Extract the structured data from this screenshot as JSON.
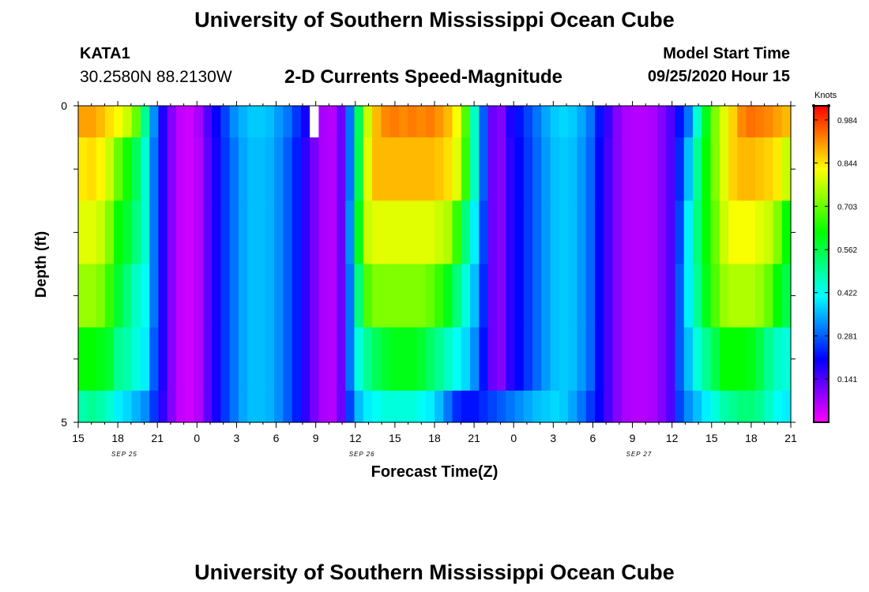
{
  "header": {
    "title_top": "University of Southern Mississippi Ocean Cube",
    "title_bottom": "University of Southern Mississippi Ocean Cube",
    "station_id": "KATA1",
    "station_coords": "30.2580N 88.2130W",
    "subtitle": "2-D Currents Speed-Magnitude",
    "model_start_label": "Model Start Time",
    "model_start_value": "09/25/2020 Hour 15"
  },
  "chart_data": {
    "type": "heatmap",
    "title": "2-D Currents Speed-Magnitude",
    "xlabel": "Forecast Time(Z)",
    "ylabel": "Depth (ft)",
    "x_ticks": [
      "15",
      "18",
      "21",
      "0",
      "3",
      "6",
      "9",
      "12",
      "15",
      "18",
      "21",
      "0",
      "3",
      "6",
      "9",
      "12",
      "15",
      "18",
      "21"
    ],
    "date_labels": [
      {
        "label": "SEP 25",
        "tick_index": 1
      },
      {
        "label": "SEP 26",
        "tick_index": 7
      },
      {
        "label": "SEP 27",
        "tick_index": 14
      }
    ],
    "y_ticks": [
      "0",
      "5"
    ],
    "ylim": [
      0,
      5
    ],
    "depth_rows": [
      0.25,
      1.0,
      2.0,
      3.0,
      4.0,
      4.75
    ],
    "time_step_hours": 1,
    "colorbar": {
      "label": "Knots",
      "min": 0.0,
      "max": 1.03,
      "ticks": [
        0.984,
        0.844,
        0.703,
        0.562,
        0.422,
        0.281,
        0.141
      ],
      "colors": [
        "#ff00ff",
        "#8000ff",
        "#0000ff",
        "#0080ff",
        "#00ffff",
        "#00ff80",
        "#00ff00",
        "#80ff00",
        "#ffff00",
        "#ff8000",
        "#ff0000"
      ]
    },
    "missing": [
      {
        "hour_index": 26,
        "row": 0
      }
    ],
    "speed_knots": [
      [
        0.9,
        0.9,
        0.88,
        0.85,
        0.82,
        0.78,
        0.7,
        0.5,
        0.32,
        0.18,
        0.1,
        0.05,
        0.04,
        0.07,
        0.14,
        0.2,
        0.26,
        0.32,
        0.35,
        0.37,
        0.37,
        0.36,
        0.33,
        0.3,
        0.25,
        0.19,
        0.12,
        0.07,
        0.06,
        0.12,
        0.3,
        0.55,
        0.78,
        0.88,
        0.92,
        0.93,
        0.92,
        0.93,
        0.92,
        0.93,
        0.91,
        0.88,
        0.82,
        0.68,
        0.46,
        0.28,
        0.12,
        0.1,
        0.18,
        0.22,
        0.26,
        0.3,
        0.34,
        0.37,
        0.38,
        0.37,
        0.34,
        0.3,
        0.22,
        0.16,
        0.1,
        0.07,
        0.06,
        0.06,
        0.07,
        0.1,
        0.14,
        0.22,
        0.3,
        0.45,
        0.6,
        0.72,
        0.8,
        0.86,
        0.92,
        0.94,
        0.93,
        0.92,
        0.9,
        0.88
      ],
      [
        0.84,
        0.85,
        0.83,
        0.78,
        0.7,
        0.63,
        0.55,
        0.45,
        0.3,
        0.18,
        0.1,
        0.05,
        0.04,
        0.06,
        0.13,
        0.19,
        0.25,
        0.3,
        0.34,
        0.36,
        0.36,
        0.35,
        0.32,
        0.28,
        0.23,
        0.17,
        0.11,
        0.07,
        0.06,
        0.12,
        0.3,
        0.56,
        0.8,
        0.88,
        0.88,
        0.88,
        0.88,
        0.88,
        0.88,
        0.88,
        0.87,
        0.85,
        0.8,
        0.66,
        0.46,
        0.28,
        0.12,
        0.1,
        0.17,
        0.21,
        0.25,
        0.29,
        0.33,
        0.36,
        0.37,
        0.36,
        0.33,
        0.29,
        0.21,
        0.15,
        0.1,
        0.07,
        0.06,
        0.06,
        0.07,
        0.1,
        0.14,
        0.24,
        0.36,
        0.5,
        0.62,
        0.72,
        0.8,
        0.86,
        0.88,
        0.88,
        0.87,
        0.86,
        0.84,
        0.78
      ],
      [
        0.8,
        0.8,
        0.78,
        0.72,
        0.62,
        0.58,
        0.52,
        0.45,
        0.3,
        0.18,
        0.1,
        0.05,
        0.04,
        0.06,
        0.13,
        0.19,
        0.25,
        0.3,
        0.34,
        0.36,
        0.36,
        0.35,
        0.32,
        0.28,
        0.23,
        0.17,
        0.11,
        0.07,
        0.06,
        0.12,
        0.32,
        0.6,
        0.78,
        0.8,
        0.8,
        0.8,
        0.8,
        0.8,
        0.8,
        0.8,
        0.78,
        0.76,
        0.66,
        0.52,
        0.4,
        0.26,
        0.12,
        0.1,
        0.17,
        0.21,
        0.25,
        0.29,
        0.33,
        0.36,
        0.37,
        0.36,
        0.33,
        0.29,
        0.21,
        0.15,
        0.1,
        0.07,
        0.06,
        0.06,
        0.07,
        0.1,
        0.14,
        0.26,
        0.4,
        0.52,
        0.62,
        0.7,
        0.78,
        0.82,
        0.82,
        0.82,
        0.8,
        0.78,
        0.72,
        0.62
      ],
      [
        0.74,
        0.74,
        0.72,
        0.66,
        0.58,
        0.52,
        0.46,
        0.42,
        0.3,
        0.18,
        0.1,
        0.05,
        0.04,
        0.06,
        0.13,
        0.19,
        0.25,
        0.3,
        0.34,
        0.36,
        0.36,
        0.35,
        0.32,
        0.28,
        0.23,
        0.17,
        0.11,
        0.07,
        0.06,
        0.12,
        0.3,
        0.52,
        0.68,
        0.72,
        0.72,
        0.72,
        0.72,
        0.72,
        0.72,
        0.7,
        0.66,
        0.6,
        0.52,
        0.44,
        0.36,
        0.24,
        0.12,
        0.1,
        0.17,
        0.21,
        0.25,
        0.29,
        0.33,
        0.36,
        0.37,
        0.36,
        0.33,
        0.29,
        0.21,
        0.15,
        0.1,
        0.07,
        0.06,
        0.06,
        0.07,
        0.1,
        0.14,
        0.28,
        0.4,
        0.5,
        0.6,
        0.68,
        0.74,
        0.76,
        0.76,
        0.76,
        0.74,
        0.7,
        0.62,
        0.56
      ],
      [
        0.62,
        0.62,
        0.6,
        0.58,
        0.5,
        0.48,
        0.44,
        0.4,
        0.28,
        0.18,
        0.1,
        0.05,
        0.04,
        0.06,
        0.13,
        0.19,
        0.25,
        0.3,
        0.34,
        0.36,
        0.36,
        0.35,
        0.32,
        0.28,
        0.23,
        0.17,
        0.11,
        0.07,
        0.06,
        0.12,
        0.3,
        0.44,
        0.5,
        0.55,
        0.58,
        0.6,
        0.6,
        0.6,
        0.58,
        0.54,
        0.5,
        0.46,
        0.42,
        0.38,
        0.32,
        0.22,
        0.12,
        0.1,
        0.17,
        0.21,
        0.25,
        0.29,
        0.33,
        0.36,
        0.37,
        0.36,
        0.33,
        0.29,
        0.21,
        0.15,
        0.1,
        0.07,
        0.06,
        0.06,
        0.07,
        0.1,
        0.14,
        0.28,
        0.36,
        0.44,
        0.5,
        0.56,
        0.62,
        0.62,
        0.62,
        0.6,
        0.56,
        0.5,
        0.46,
        0.44
      ],
      [
        0.48,
        0.5,
        0.48,
        0.45,
        0.4,
        0.38,
        0.35,
        0.32,
        0.25,
        0.17,
        0.1,
        0.05,
        0.04,
        0.06,
        0.13,
        0.19,
        0.25,
        0.3,
        0.34,
        0.36,
        0.36,
        0.35,
        0.32,
        0.28,
        0.23,
        0.17,
        0.11,
        0.07,
        0.06,
        0.12,
        0.26,
        0.36,
        0.4,
        0.42,
        0.44,
        0.44,
        0.44,
        0.44,
        0.42,
        0.4,
        0.36,
        0.3,
        0.24,
        0.22,
        0.22,
        0.24,
        0.26,
        0.28,
        0.3,
        0.32,
        0.34,
        0.36,
        0.37,
        0.38,
        0.37,
        0.34,
        0.3,
        0.25,
        0.2,
        0.15,
        0.1,
        0.07,
        0.06,
        0.06,
        0.07,
        0.1,
        0.14,
        0.26,
        0.32,
        0.36,
        0.4,
        0.44,
        0.48,
        0.5,
        0.52,
        0.52,
        0.5,
        0.46,
        0.42,
        0.4
      ]
    ]
  }
}
